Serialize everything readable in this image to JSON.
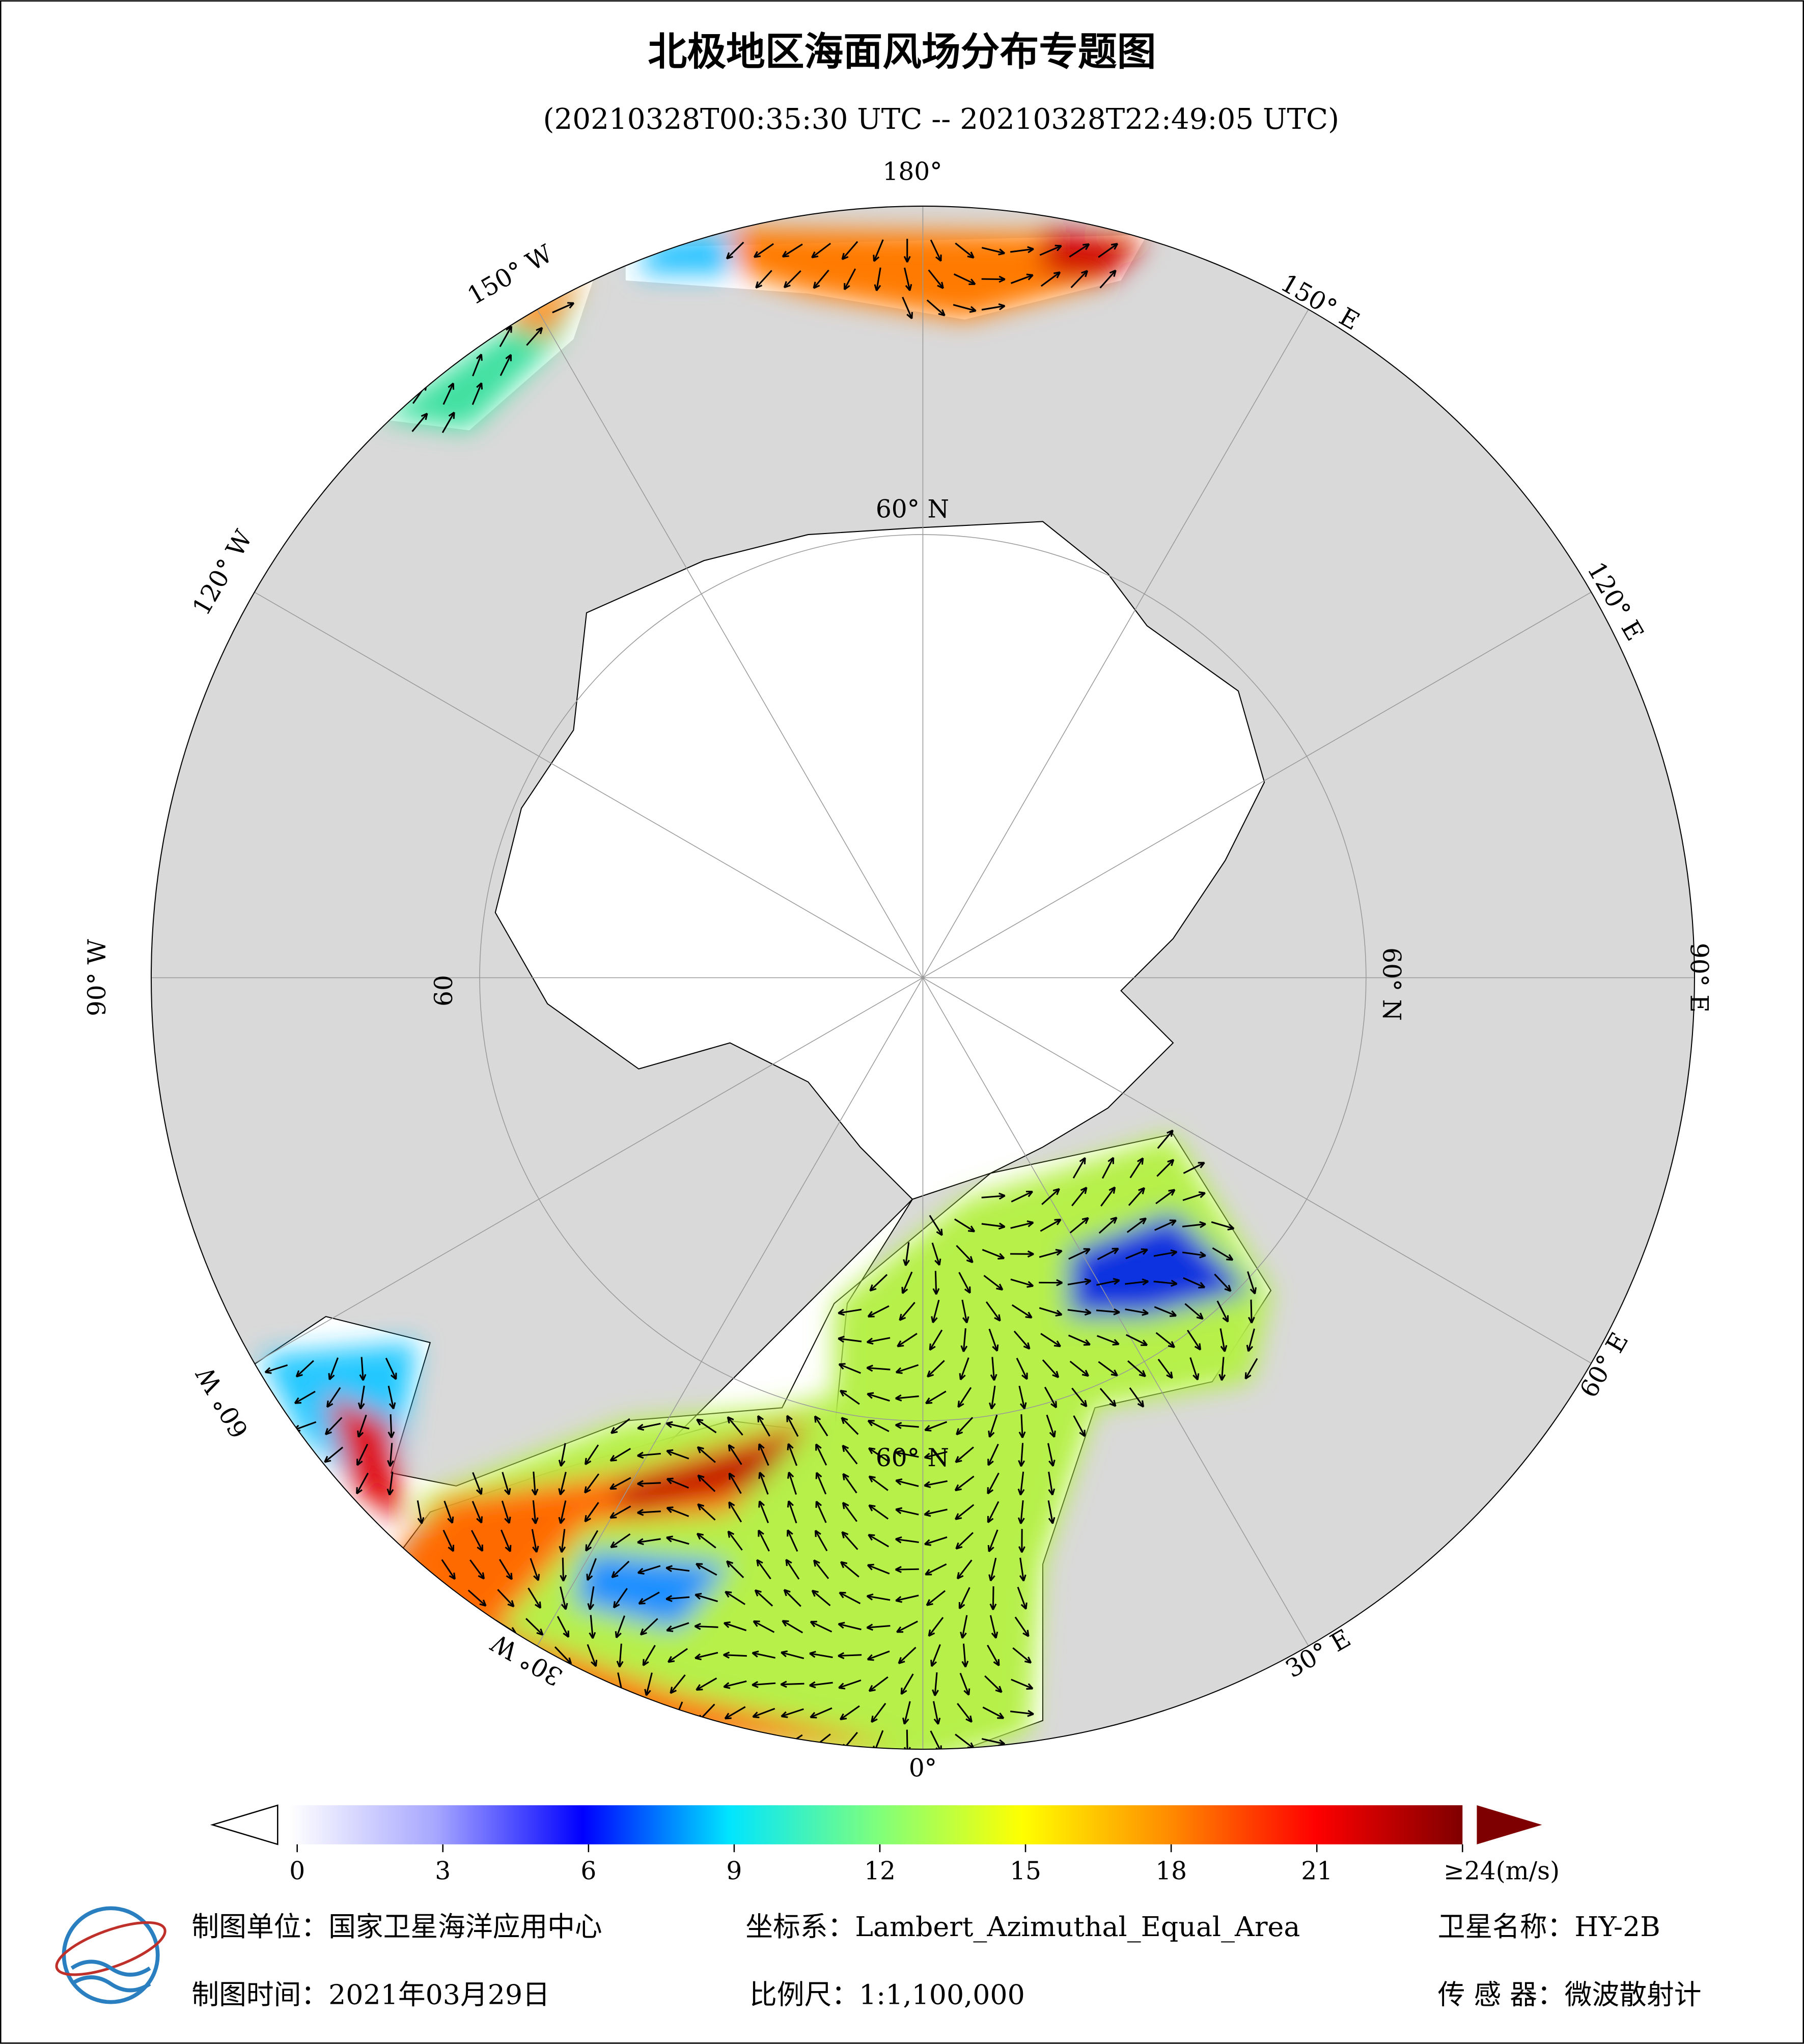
{
  "header": {
    "title": "北极地区海面风场分布专题图",
    "subtitle": "(20210328T00:35:30 UTC -- 20210328T22:49:05 UTC)"
  },
  "map": {
    "longitude_labels": [
      "180°",
      "150° E",
      "120° E",
      "90° E",
      "60° E",
      "30° E",
      "0°",
      "30° W",
      "60° W",
      "90° W",
      "120° W",
      "150° W"
    ],
    "latitude_labels": [
      "60° N",
      "60° N",
      "60° N",
      "60"
    ]
  },
  "colorbar": {
    "range": [
      0,
      24
    ],
    "ticks": [
      0,
      3,
      6,
      9,
      12,
      15,
      18,
      21,
      {
        "value": 24,
        "label": "≥24(m/s)"
      }
    ],
    "colors": [
      "#ffffff",
      "#a6a6ff",
      "#0000ff",
      "#00e5ff",
      "#7dff7d",
      "#ffff00",
      "#ff8c00",
      "#ff0000",
      "#7f0000"
    ]
  },
  "footer": {
    "unit": "制图单位：国家卫星海洋应用中心",
    "coordinate_system": "坐标系：Lambert_Azimuthal_Equal_Area",
    "satellite": "卫星名称：HY-2B",
    "date": "制图时间：2021年03月29日",
    "scale": "比例尺：1:1,100,000",
    "sensor": "传 感 器：微波散射计"
  }
}
